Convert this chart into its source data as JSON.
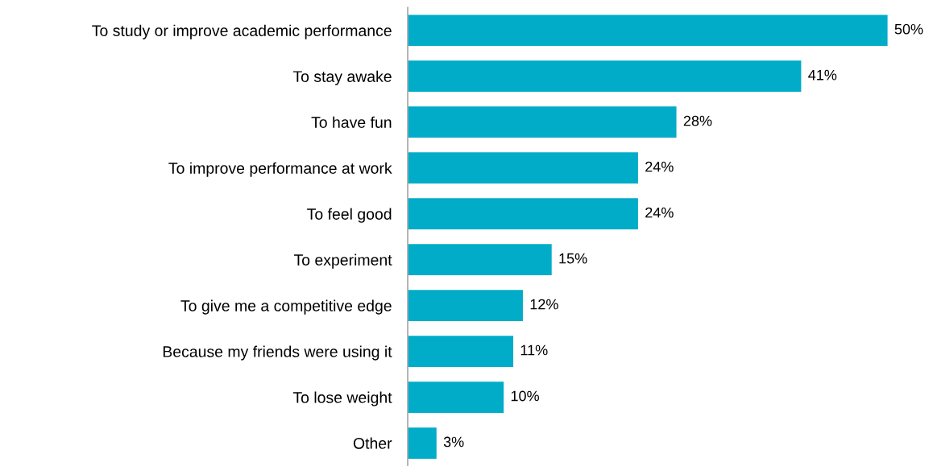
{
  "chart_data": {
    "type": "bar",
    "orientation": "horizontal",
    "categories": [
      "To study or improve academic performance",
      "To stay awake",
      "To have fun",
      "To improve performance at work",
      "To feel good",
      "To experiment",
      "To give me a competitive edge",
      "Because my friends were using it",
      "To lose weight",
      "Other"
    ],
    "values": [
      50,
      41,
      28,
      24,
      24,
      15,
      12,
      11,
      10,
      3
    ],
    "value_labels": [
      "50%",
      "41%",
      "28%",
      "24%",
      "24%",
      "15%",
      "12%",
      "11%",
      "10%",
      "3%"
    ],
    "color": "#00acc8"
  }
}
